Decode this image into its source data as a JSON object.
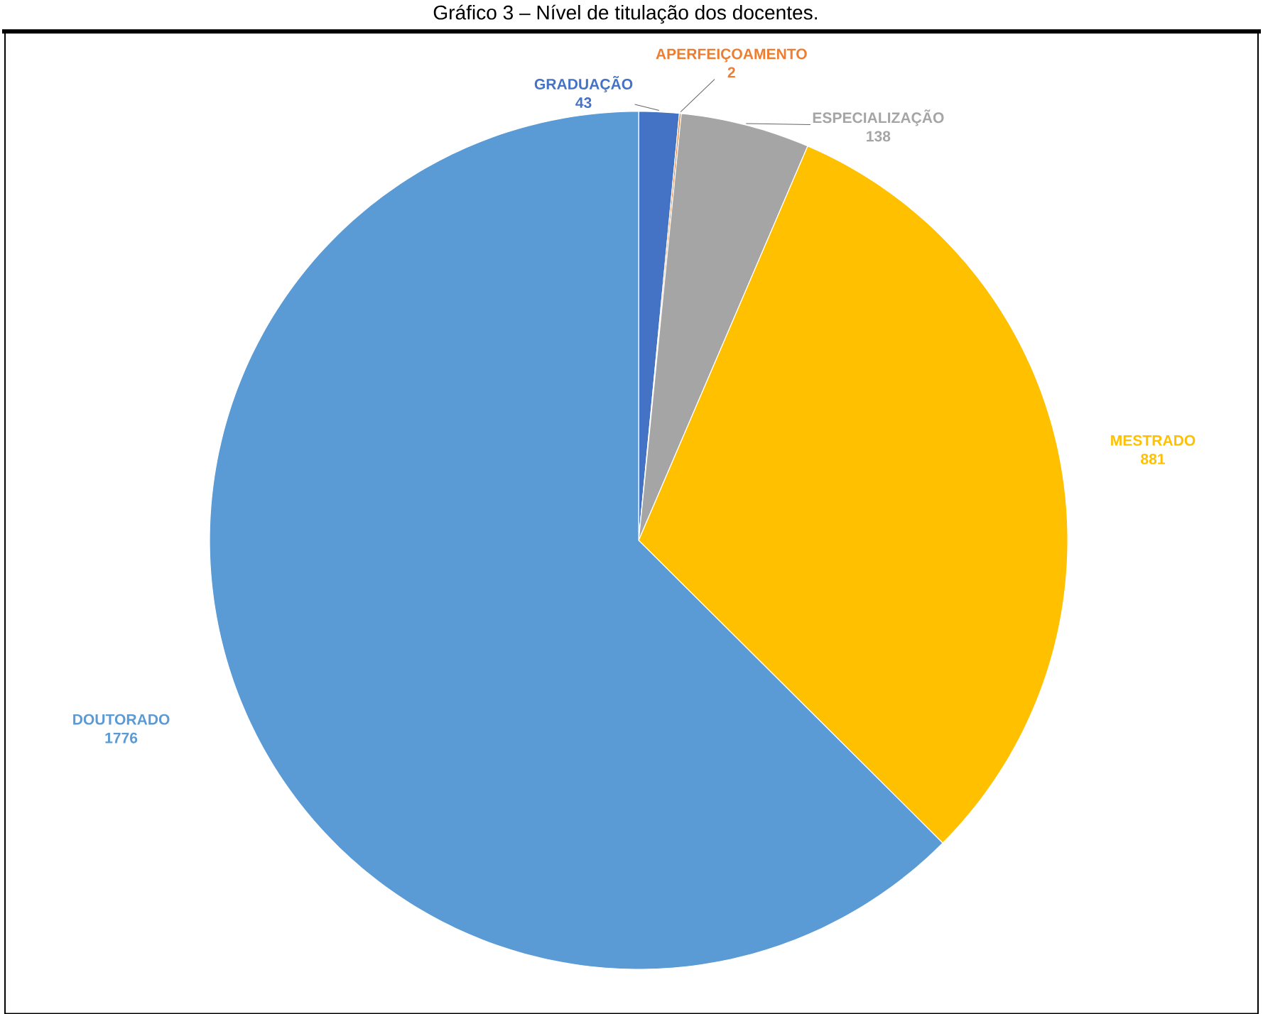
{
  "chart_data": {
    "type": "pie",
    "title": "Gráfico 3 – Nível de titulação dos docentes.",
    "categories": [
      "GRADUAÇÃO",
      "APERFEIÇOAMENTO",
      "ESPECIALIZAÇÃO",
      "MESTRADO",
      "DOUTORADO"
    ],
    "values": [
      43,
      2,
      138,
      881,
      1776
    ],
    "colors": [
      "#4472c4",
      "#ed7d31",
      "#a5a5a5",
      "#ffc000",
      "#5b9bd5"
    ],
    "data_labels": true
  }
}
